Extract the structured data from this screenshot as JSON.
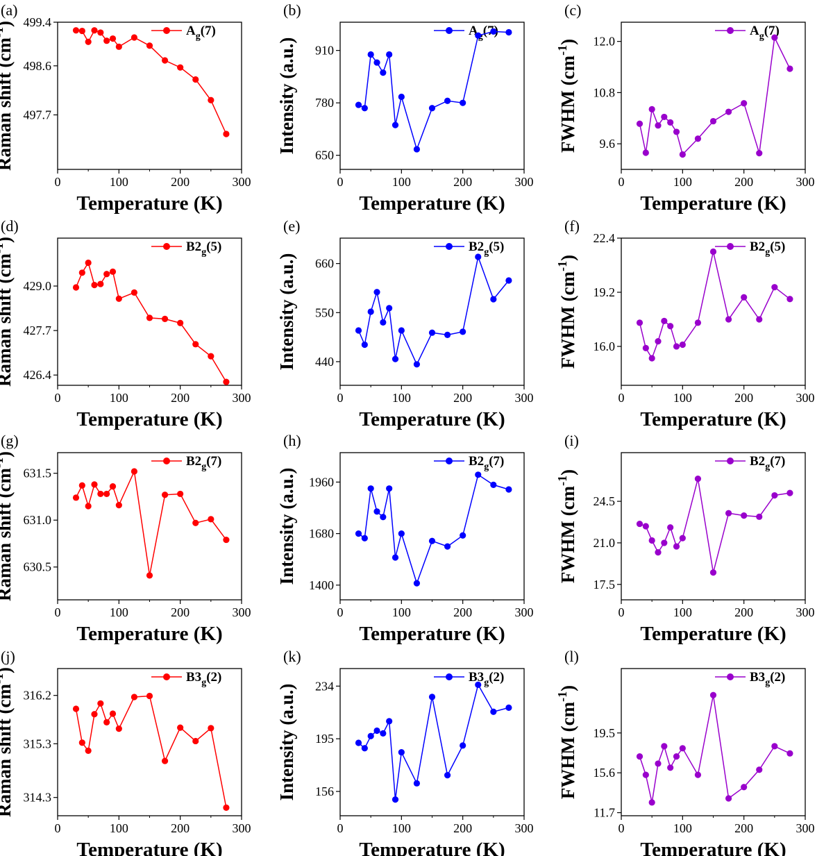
{
  "figure": {
    "x_common": [
      30,
      40,
      50,
      60,
      70,
      80,
      90,
      100,
      125,
      150,
      175,
      200,
      225,
      250,
      275
    ]
  },
  "chart_data": [
    {
      "panel_label": "(a)",
      "type": "line",
      "color": "#ff0000",
      "legend_main": "A",
      "legend_sub": "g",
      "legend_tail": "(7)",
      "xlabel": "Temperature (K)",
      "ylabel": "Raman shift (cm",
      "ylabel_sup": "-1",
      "ylabel_tail": ")",
      "xlim": [
        0,
        300
      ],
      "ylim": [
        496.7,
        499.4
      ],
      "xticks": [
        0,
        100,
        200,
        300
      ],
      "yticks": [
        "497.7",
        "498.6",
        "499.4"
      ],
      "x": [
        30,
        40,
        50,
        60,
        70,
        80,
        90,
        100,
        125,
        150,
        175,
        200,
        225,
        250,
        275
      ],
      "y": [
        499.25,
        499.24,
        499.04,
        499.25,
        499.21,
        499.06,
        499.1,
        498.95,
        499.12,
        498.97,
        498.7,
        498.57,
        498.35,
        497.97,
        497.35
      ]
    },
    {
      "panel_label": "(b)",
      "type": "line",
      "color": "#0000ff",
      "legend_main": "A",
      "legend_sub": "g",
      "legend_tail": "(7)",
      "xlabel": "Temperature (K)",
      "ylabel": "Intensity (a.u.)",
      "ylabel_sup": "",
      "ylabel_tail": "",
      "xlim": [
        0,
        300
      ],
      "ylim": [
        615,
        980
      ],
      "xticks": [
        0,
        100,
        200,
        300
      ],
      "yticks": [
        "650",
        "780",
        "910"
      ],
      "x": [
        30,
        40,
        50,
        60,
        70,
        80,
        90,
        100,
        125,
        150,
        175,
        200,
        225,
        250,
        275
      ],
      "y": [
        775,
        767,
        900,
        880,
        855,
        900,
        725,
        795,
        665,
        767,
        785,
        780,
        947,
        957,
        955
      ]
    },
    {
      "panel_label": "(c)",
      "type": "line",
      "color": "#9900cc",
      "legend_main": "A",
      "legend_sub": "g",
      "legend_tail": "(7)",
      "xlabel": "Temperature (K)",
      "ylabel": "FWHM (cm",
      "ylabel_sup": "-1",
      "ylabel_tail": ")",
      "xlim": [
        0,
        300
      ],
      "ylim": [
        9.0,
        12.45
      ],
      "xticks": [
        0,
        100,
        200,
        300
      ],
      "yticks": [
        "9.6",
        "10.8",
        "12.0"
      ],
      "x": [
        30,
        40,
        50,
        60,
        70,
        80,
        90,
        100,
        125,
        150,
        175,
        200,
        225,
        250,
        275
      ],
      "y": [
        10.07,
        9.39,
        10.41,
        10.03,
        10.23,
        10.1,
        9.88,
        9.35,
        9.72,
        10.13,
        10.35,
        10.55,
        9.38,
        12.09,
        11.36
      ]
    },
    {
      "panel_label": "(d)",
      "type": "line",
      "color": "#ff0000",
      "legend_main": "B2",
      "legend_sub": "g",
      "legend_tail": "(5)",
      "xlabel": "Temperature (K)",
      "ylabel": "Raman shift (cm",
      "ylabel_sup": "-1",
      "ylabel_tail": ")",
      "xlim": [
        0,
        300
      ],
      "ylim": [
        426.1,
        430.4
      ],
      "xticks": [
        0,
        100,
        200,
        300
      ],
      "yticks": [
        "426.4",
        "427.7",
        "429.0"
      ],
      "x": [
        30,
        40,
        50,
        60,
        70,
        80,
        90,
        100,
        125,
        150,
        175,
        200,
        225,
        250,
        275
      ],
      "y": [
        428.96,
        429.39,
        429.68,
        429.03,
        429.06,
        429.35,
        429.42,
        428.63,
        428.81,
        428.07,
        428.04,
        427.92,
        427.3,
        426.95,
        426.2
      ]
    },
    {
      "panel_label": "(e)",
      "type": "line",
      "color": "#0000ff",
      "legend_main": "B2",
      "legend_sub": "g",
      "legend_tail": "(5)",
      "xlabel": "Temperature (K)",
      "ylabel": "Intensity (a.u.)",
      "ylabel_sup": "",
      "ylabel_tail": "",
      "xlim": [
        0,
        300
      ],
      "ylim": [
        387,
        717
      ],
      "xticks": [
        0,
        100,
        200,
        300
      ],
      "yticks": [
        "440",
        "550",
        "660"
      ],
      "x": [
        30,
        40,
        50,
        60,
        70,
        80,
        90,
        100,
        125,
        150,
        175,
        200,
        225,
        250,
        275
      ],
      "y": [
        510,
        478,
        552,
        596,
        528,
        560,
        446,
        510,
        434,
        505,
        500,
        507,
        675,
        580,
        622
      ]
    },
    {
      "panel_label": "(f)",
      "type": "line",
      "color": "#9900cc",
      "legend_main": "B2",
      "legend_sub": "g",
      "legend_tail": "(5)",
      "xlabel": "Temperature (K)",
      "ylabel": "FWHM (cm",
      "ylabel_sup": "-1",
      "ylabel_tail": ")",
      "xlim": [
        0,
        300
      ],
      "ylim": [
        13.7,
        22.4
      ],
      "xticks": [
        0,
        100,
        200,
        300
      ],
      "yticks": [
        "16.0",
        "19.2",
        "22.4"
      ],
      "x": [
        30,
        40,
        50,
        60,
        70,
        80,
        90,
        100,
        125,
        150,
        175,
        200,
        225,
        250,
        275
      ],
      "y": [
        17.4,
        15.9,
        15.3,
        16.3,
        17.5,
        17.2,
        16.0,
        16.1,
        17.4,
        21.6,
        17.6,
        18.9,
        17.6,
        19.5,
        18.8
      ]
    },
    {
      "panel_label": "(g)",
      "type": "line",
      "color": "#ff0000",
      "legend_main": "B2",
      "legend_sub": "g",
      "legend_tail": "(7)",
      "xlabel": "Temperature (K)",
      "ylabel": "Raman shift (cm",
      "ylabel_sup": "-1",
      "ylabel_tail": ")",
      "xlim": [
        0,
        300
      ],
      "ylim": [
        630.15,
        631.72
      ],
      "xticks": [
        0,
        100,
        200,
        300
      ],
      "yticks": [
        "630.5",
        "631.0",
        "631.5"
      ],
      "x": [
        30,
        40,
        50,
        60,
        70,
        80,
        90,
        100,
        125,
        150,
        175,
        200,
        225,
        250,
        275
      ],
      "y": [
        631.24,
        631.37,
        631.15,
        631.38,
        631.28,
        631.28,
        631.36,
        631.16,
        631.52,
        630.41,
        631.27,
        631.28,
        630.97,
        631.01,
        630.79
      ]
    },
    {
      "panel_label": "(h)",
      "type": "line",
      "color": "#0000ff",
      "legend_main": "B2",
      "legend_sub": "g",
      "legend_tail": "(7)",
      "xlabel": "Temperature (K)",
      "ylabel": "Intensity (a.u.)",
      "ylabel_sup": "",
      "ylabel_tail": "",
      "xlim": [
        0,
        300
      ],
      "ylim": [
        1320,
        2120
      ],
      "xticks": [
        0,
        100,
        200,
        300
      ],
      "yticks": [
        "1400",
        "1680",
        "1960"
      ],
      "x": [
        30,
        40,
        50,
        60,
        70,
        80,
        90,
        100,
        125,
        150,
        175,
        200,
        225,
        250,
        275
      ],
      "y": [
        1680,
        1655,
        1925,
        1800,
        1770,
        1925,
        1550,
        1680,
        1410,
        1640,
        1610,
        1670,
        2000,
        1945,
        1920
      ]
    },
    {
      "panel_label": "(i)",
      "type": "line",
      "color": "#9900cc",
      "legend_main": "B2",
      "legend_sub": "g",
      "legend_tail": "(7)",
      "xlabel": "Temperature (K)",
      "ylabel": "FWHM (cm",
      "ylabel_sup": "-1",
      "ylabel_tail": ")",
      "xlim": [
        0,
        300
      ],
      "ylim": [
        16.2,
        28.6
      ],
      "xticks": [
        0,
        100,
        200,
        300
      ],
      "yticks": [
        "17.5",
        "21.0",
        "24.5"
      ],
      "x": [
        30,
        40,
        50,
        60,
        70,
        80,
        90,
        100,
        125,
        150,
        175,
        200,
        225,
        250,
        275
      ],
      "y": [
        22.6,
        22.4,
        21.2,
        20.2,
        21.0,
        22.3,
        20.7,
        21.4,
        26.4,
        18.5,
        23.5,
        23.3,
        23.2,
        25.0,
        25.2
      ]
    },
    {
      "panel_label": "(j)",
      "type": "line",
      "color": "#ff0000",
      "legend_main": "B3",
      "legend_sub": "g",
      "legend_tail": "(2)",
      "xlabel": "Temperature (K)",
      "ylabel": "Raman shift (cm",
      "ylabel_sup": "-1",
      "ylabel_tail": ")",
      "xlim": [
        0,
        300
      ],
      "ylim": [
        313.96,
        316.7
      ],
      "xticks": [
        0,
        100,
        200,
        300
      ],
      "yticks": [
        "314.3",
        "315.3",
        "316.2"
      ],
      "x": [
        30,
        40,
        50,
        60,
        70,
        80,
        90,
        100,
        125,
        150,
        175,
        200,
        225,
        250,
        275
      ],
      "y": [
        315.95,
        315.32,
        315.17,
        315.85,
        316.05,
        315.7,
        315.86,
        315.58,
        316.17,
        316.19,
        314.98,
        315.6,
        315.35,
        315.59,
        314.11
      ]
    },
    {
      "panel_label": "(k)",
      "type": "line",
      "color": "#0000ff",
      "legend_main": "B3",
      "legend_sub": "g",
      "legend_tail": "(2)",
      "xlabel": "Temperature (K)",
      "ylabel": "Intensity (a.u.)",
      "ylabel_sup": "",
      "ylabel_tail": "",
      "xlim": [
        0,
        300
      ],
      "ylim": [
        138,
        247
      ],
      "xticks": [
        0,
        100,
        200,
        300
      ],
      "yticks": [
        "156",
        "195",
        "234"
      ],
      "x": [
        30,
        40,
        50,
        60,
        70,
        80,
        90,
        100,
        125,
        150,
        175,
        200,
        225,
        250,
        275
      ],
      "y": [
        192,
        188,
        197,
        201,
        199,
        208,
        150,
        185,
        162,
        226,
        168,
        190,
        235,
        215,
        218
      ]
    },
    {
      "panel_label": "(l)",
      "type": "line",
      "color": "#9900cc",
      "legend_main": "B3",
      "legend_sub": "g",
      "legend_tail": "(2)",
      "xlabel": "Temperature (K)",
      "ylabel": "FWHM (cm",
      "ylabel_sup": "-1",
      "ylabel_tail": ")",
      "xlim": [
        0,
        300
      ],
      "ylim": [
        11.4,
        25.8
      ],
      "xticks": [
        0,
        100,
        200,
        300
      ],
      "yticks": [
        "11.7",
        "15.6",
        "19.5"
      ],
      "x": [
        30,
        40,
        50,
        60,
        70,
        80,
        90,
        100,
        125,
        150,
        175,
        200,
        225,
        250,
        275
      ],
      "y": [
        17.2,
        15.4,
        12.7,
        16.5,
        18.2,
        16.1,
        17.2,
        18.0,
        15.4,
        23.2,
        13.1,
        14.2,
        15.9,
        18.2,
        17.5
      ]
    }
  ]
}
